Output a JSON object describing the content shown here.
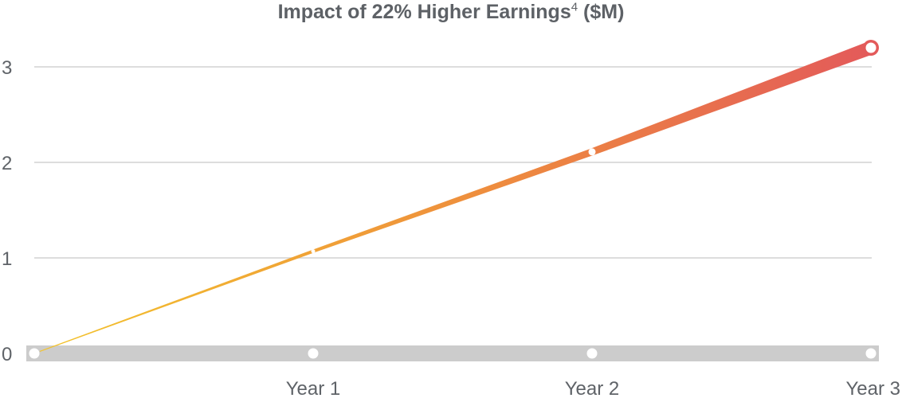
{
  "chart_data": {
    "type": "line",
    "title": "Impact of 22% Higher Earnings",
    "title_superscript": "4",
    "title_suffix": "($M)",
    "xlabel": "",
    "ylabel": "",
    "categories": [
      "",
      "Year 1",
      "Year 2",
      "Year 3"
    ],
    "ylim": [
      0,
      3
    ],
    "yticks": [
      "0",
      "1",
      "2",
      "3"
    ],
    "grid": true,
    "legend": "none",
    "series": [
      {
        "values": [
          0,
          0,
          0,
          0
        ],
        "color": "#cccccc"
      },
      {
        "values": [
          0,
          1.07,
          2.11,
          3.2
        ],
        "color_start": "#f3c42b",
        "color_mid": "#ee8c3e",
        "color_end": "#e35a5a"
      }
    ]
  }
}
